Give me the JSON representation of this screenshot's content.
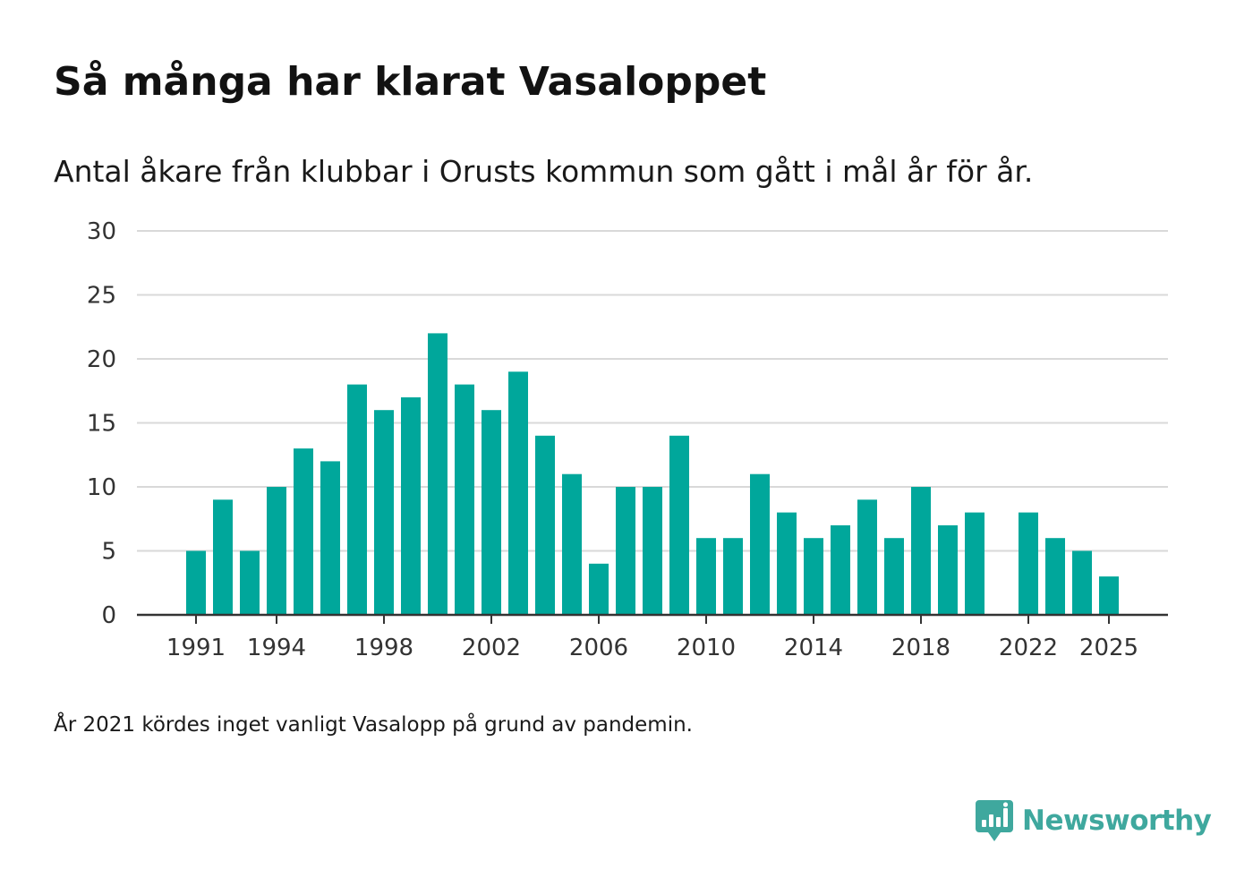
{
  "title": "Så många har klarat Vasaloppet",
  "subtitle": "Antal åkare från klubbar i Orusts kommun som gått i mål år för år.",
  "note": "År 2021 kördes inget vanligt Vasalopp på grund av pandemin.",
  "brand": {
    "name": "Newsworthy",
    "icon": "newsworthy-logo-icon"
  },
  "colors": {
    "bar": "#00a79b",
    "grid": "#d9d9d9",
    "axis": "#333333",
    "brand": "#3fa89e"
  },
  "chart_data": {
    "type": "bar",
    "title": "Så många har klarat Vasaloppet",
    "xlabel": "",
    "ylabel": "",
    "ylim": [
      0,
      30
    ],
    "yticks": [
      0,
      5,
      10,
      15,
      20,
      25,
      30
    ],
    "xticks": [
      1991,
      1994,
      1998,
      2002,
      2006,
      2010,
      2014,
      2018,
      2022,
      2025
    ],
    "grid": true,
    "categories": [
      1991,
      1992,
      1993,
      1994,
      1995,
      1996,
      1997,
      1998,
      1999,
      2000,
      2001,
      2002,
      2003,
      2004,
      2005,
      2006,
      2007,
      2008,
      2009,
      2010,
      2011,
      2012,
      2013,
      2014,
      2015,
      2016,
      2017,
      2018,
      2019,
      2020,
      2021,
      2022,
      2023,
      2024,
      2025
    ],
    "values": [
      5,
      9,
      5,
      10,
      13,
      12,
      18,
      16,
      17,
      22,
      18,
      16,
      19,
      14,
      11,
      4,
      10,
      10,
      14,
      6,
      6,
      11,
      8,
      6,
      7,
      9,
      6,
      10,
      7,
      8,
      null,
      8,
      6,
      5,
      3
    ]
  }
}
